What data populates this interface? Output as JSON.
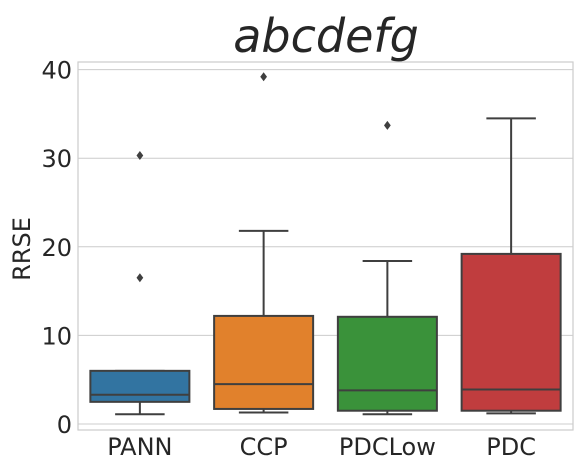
{
  "chart_data": {
    "type": "box",
    "title": "abcdefg",
    "xlabel": "",
    "ylabel": "RRSE",
    "ylim": [
      -1,
      41
    ],
    "yticks": [
      0,
      10,
      20,
      30,
      40
    ],
    "grid": "horizontal",
    "categories": [
      "PANN",
      "CCP",
      "PDCLow",
      "PDC"
    ],
    "series": [
      {
        "category": "PANN",
        "color": "#3274a1",
        "whisker_low": 1.1,
        "q1": 2.5,
        "median": 3.3,
        "q3": 6.0,
        "whisker_high": 6.0,
        "outliers": [
          30.3,
          16.5
        ]
      },
      {
        "category": "CCP",
        "color": "#e1812c",
        "whisker_low": 1.3,
        "q1": 1.7,
        "median": 4.5,
        "q3": 12.2,
        "whisker_high": 21.8,
        "outliers": [
          39.2
        ]
      },
      {
        "category": "PDCLow",
        "color": "#3a923a",
        "whisker_low": 1.1,
        "q1": 1.5,
        "median": 3.8,
        "q3": 12.1,
        "whisker_high": 18.4,
        "outliers": [
          33.7
        ]
      },
      {
        "category": "PDC",
        "color": "#c03d3e",
        "whisker_low": 1.2,
        "q1": 1.5,
        "median": 3.9,
        "q3": 19.2,
        "whisker_high": 34.5,
        "outliers": []
      }
    ]
  }
}
